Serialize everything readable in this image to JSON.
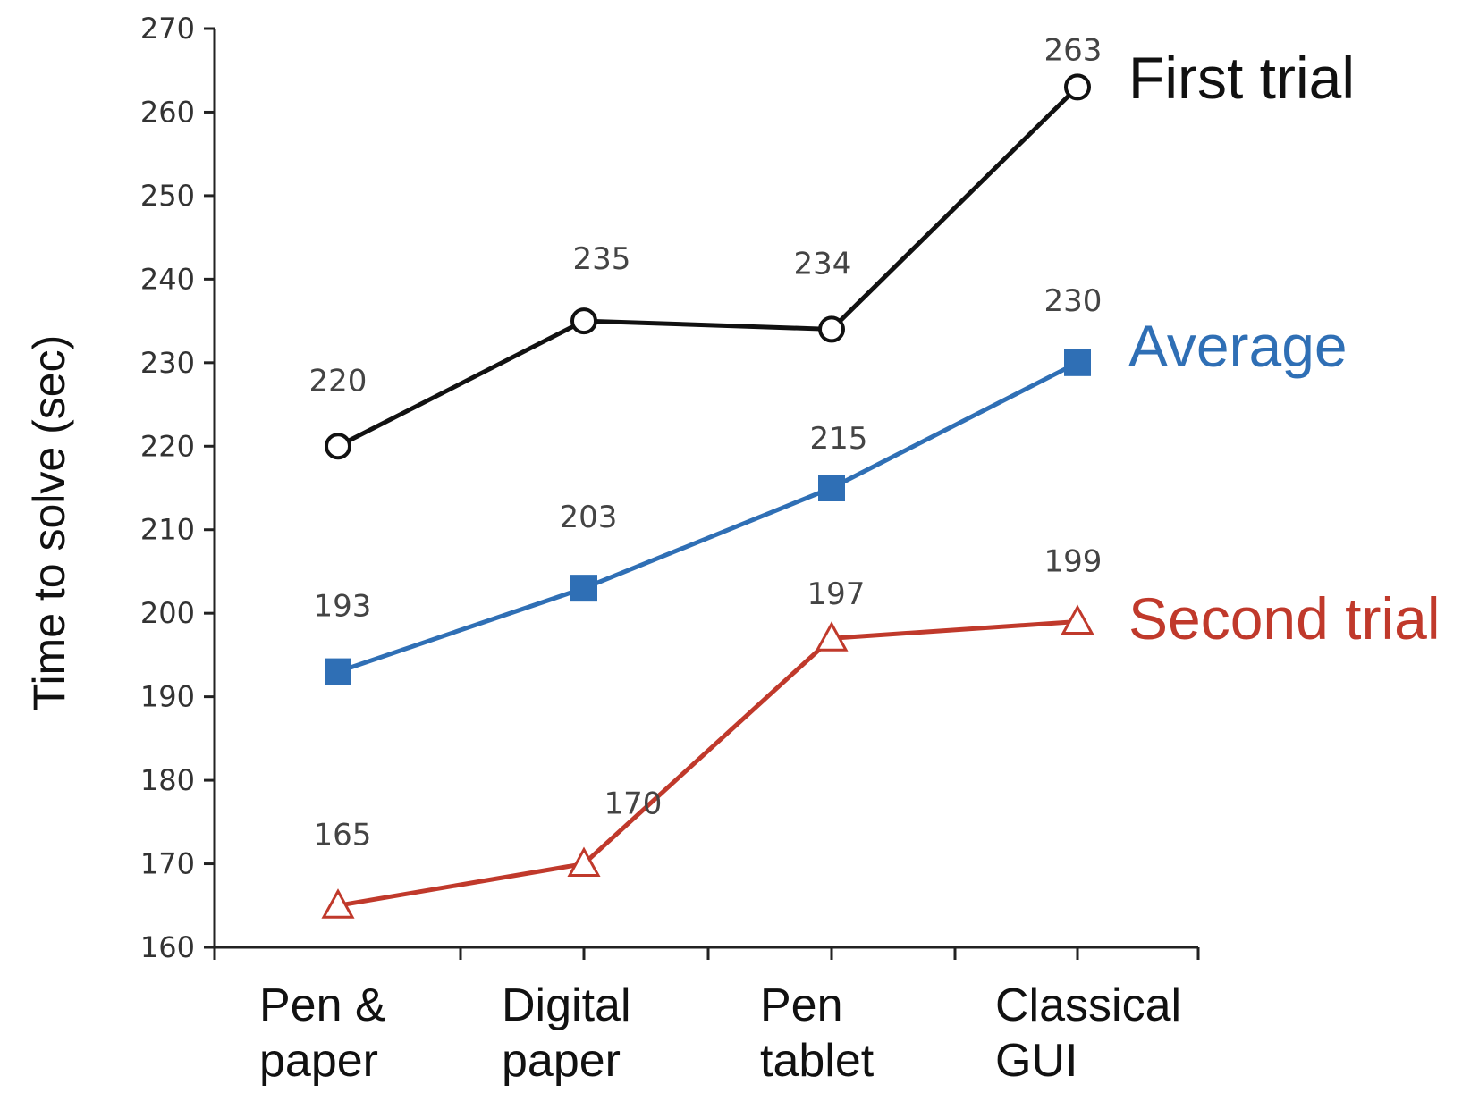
{
  "chart_data": {
    "type": "line",
    "categories": [
      "Pen & paper",
      "Digital paper",
      "Pen tablet",
      "Classical GUI"
    ],
    "category_lines": [
      [
        "Pen &",
        "paper"
      ],
      [
        "Digital",
        "paper"
      ],
      [
        "Pen",
        "tablet"
      ],
      [
        "Classical",
        "GUI"
      ]
    ],
    "ylabel": "Time to solve (sec)",
    "xlabel": "",
    "ylim": [
      160,
      270
    ],
    "yticks": [
      160,
      170,
      180,
      190,
      200,
      210,
      220,
      230,
      240,
      250,
      260,
      270
    ],
    "grid": false,
    "legend": "series labels placed at right end of each line",
    "series": [
      {
        "name": "First trial",
        "values": [
          220,
          235,
          234,
          263
        ],
        "color": "#111111",
        "marker": "open-circle"
      },
      {
        "name": "Average",
        "values": [
          193,
          203,
          215,
          230
        ],
        "color": "#2f6fb5",
        "marker": "filled-square"
      },
      {
        "name": "Second trial",
        "values": [
          165,
          170,
          197,
          199
        ],
        "color": "#c0392b",
        "marker": "open-triangle"
      }
    ]
  }
}
